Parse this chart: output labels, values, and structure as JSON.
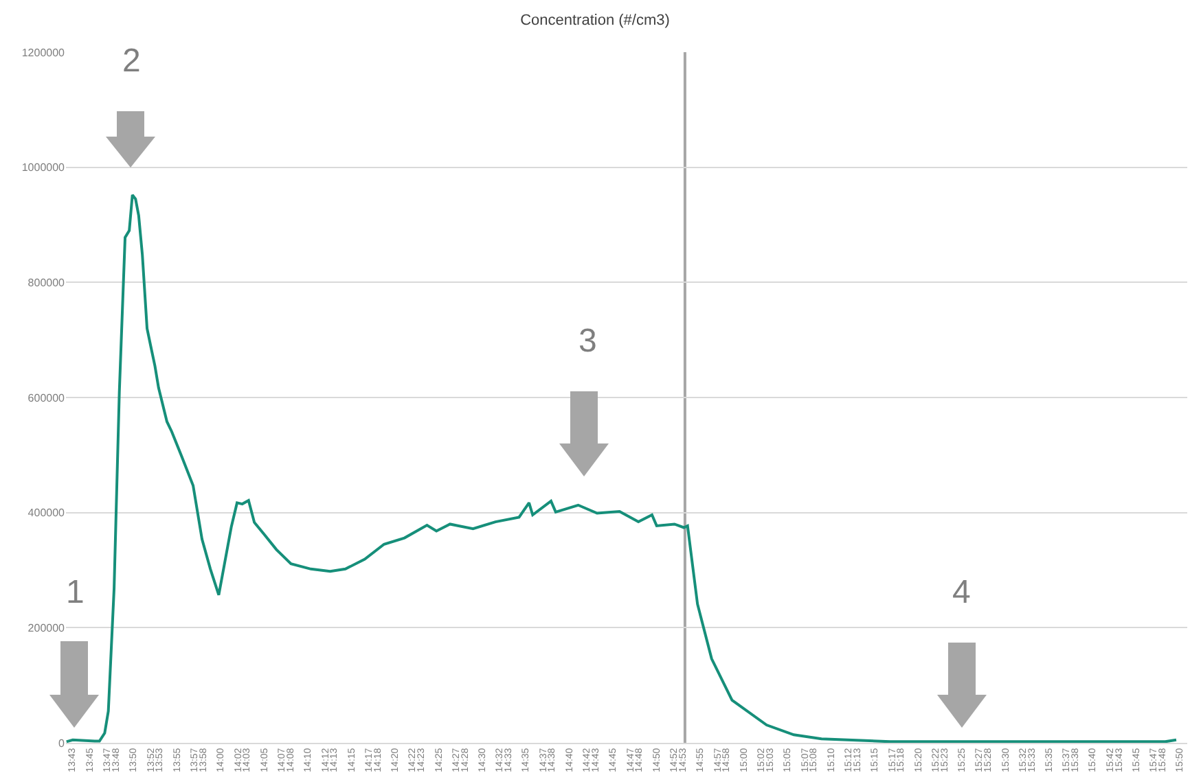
{
  "chart_data": {
    "type": "line",
    "title": "Concentration (#/cm3)",
    "x": [
      13.706,
      13.718,
      13.76,
      13.769,
      13.779,
      13.786,
      13.797,
      13.807,
      13.818,
      13.826,
      13.832,
      13.838,
      13.844,
      13.851,
      13.86,
      13.868,
      13.875,
      13.882,
      13.898,
      13.907,
      13.926,
      13.948,
      13.965,
      13.981,
      13.997,
      14.008,
      14.021,
      14.032,
      14.042,
      14.054,
      14.065,
      14.084,
      14.107,
      14.135,
      14.173,
      14.21,
      14.239,
      14.276,
      14.313,
      14.352,
      14.395,
      14.413,
      14.439,
      14.483,
      14.526,
      14.571,
      14.59,
      14.597,
      14.632,
      14.641,
      14.684,
      14.72,
      14.763,
      14.799,
      14.825,
      14.834,
      14.868,
      14.886,
      14.893,
      14.912,
      14.939,
      14.978,
      15.044,
      15.096,
      15.149,
      15.28,
      15.806,
      15.827
    ],
    "series": [
      {
        "color": "#168f7a",
        "values": [
          2000,
          5000,
          3000,
          3000,
          17000,
          55000,
          268000,
          609000,
          878000,
          890000,
          952000,
          945000,
          916000,
          848000,
          720000,
          685000,
          655000,
          617000,
          558000,
          541000,
          498000,
          447000,
          354000,
          302000,
          257000,
          311000,
          375000,
          417000,
          415000,
          421000,
          383000,
          362000,
          336000,
          311000,
          302000,
          298000,
          302000,
          319000,
          345000,
          356000,
          378000,
          368000,
          380000,
          372000,
          384000,
          392000,
          417000,
          396000,
          420000,
          401000,
          413000,
          399000,
          402000,
          384000,
          396000,
          377000,
          380000,
          374000,
          377000,
          241000,
          146000,
          74000,
          31000,
          14000,
          7000,
          2000,
          2000,
          5000
        ]
      }
    ],
    "xlim": [
      13.705,
      15.848
    ],
    "xticks": [
      {
        "value": 13.7167,
        "label": "13:43"
      },
      {
        "value": 13.75,
        "label": "13:45"
      },
      {
        "value": 13.7833,
        "label": "13:47"
      },
      {
        "value": 13.8,
        "label": "13:48"
      },
      {
        "value": 13.8333,
        "label": "13:50"
      },
      {
        "value": 13.8667,
        "label": "13:52"
      },
      {
        "value": 13.8833,
        "label": "13:53"
      },
      {
        "value": 13.9167,
        "label": "13:55"
      },
      {
        "value": 13.95,
        "label": "13:57"
      },
      {
        "value": 13.9667,
        "label": "13:58"
      },
      {
        "value": 14.0,
        "label": "14:00"
      },
      {
        "value": 14.0333,
        "label": "14:02"
      },
      {
        "value": 14.05,
        "label": "14:03"
      },
      {
        "value": 14.0833,
        "label": "14:05"
      },
      {
        "value": 14.1167,
        "label": "14:07"
      },
      {
        "value": 14.1333,
        "label": "14:08"
      },
      {
        "value": 14.1667,
        "label": "14:10"
      },
      {
        "value": 14.2,
        "label": "14:12"
      },
      {
        "value": 14.2167,
        "label": "14:13"
      },
      {
        "value": 14.25,
        "label": "14:15"
      },
      {
        "value": 14.2833,
        "label": "14:17"
      },
      {
        "value": 14.3,
        "label": "14:18"
      },
      {
        "value": 14.3333,
        "label": "14:20"
      },
      {
        "value": 14.3667,
        "label": "14:22"
      },
      {
        "value": 14.3833,
        "label": "14:23"
      },
      {
        "value": 14.4167,
        "label": "14:25"
      },
      {
        "value": 14.45,
        "label": "14:27"
      },
      {
        "value": 14.4667,
        "label": "14:28"
      },
      {
        "value": 14.5,
        "label": "14:30"
      },
      {
        "value": 14.5333,
        "label": "14:32"
      },
      {
        "value": 14.55,
        "label": "14:33"
      },
      {
        "value": 14.5833,
        "label": "14:35"
      },
      {
        "value": 14.6167,
        "label": "14:37"
      },
      {
        "value": 14.6333,
        "label": "14:38"
      },
      {
        "value": 14.6667,
        "label": "14:40"
      },
      {
        "value": 14.7,
        "label": "14:42"
      },
      {
        "value": 14.7167,
        "label": "14:43"
      },
      {
        "value": 14.75,
        "label": "14:45"
      },
      {
        "value": 14.7833,
        "label": "14:47"
      },
      {
        "value": 14.8,
        "label": "14:48"
      },
      {
        "value": 14.8333,
        "label": "14:50"
      },
      {
        "value": 14.8667,
        "label": "14:52"
      },
      {
        "value": 14.8833,
        "label": "14:53"
      },
      {
        "value": 14.9167,
        "label": "14:55"
      },
      {
        "value": 14.95,
        "label": "14:57"
      },
      {
        "value": 14.9667,
        "label": "14:58"
      },
      {
        "value": 15.0,
        "label": "15:00"
      },
      {
        "value": 15.0333,
        "label": "15:02"
      },
      {
        "value": 15.05,
        "label": "15:03"
      },
      {
        "value": 15.0833,
        "label": "15:05"
      },
      {
        "value": 15.1167,
        "label": "15:07"
      },
      {
        "value": 15.1333,
        "label": "15:08"
      },
      {
        "value": 15.1667,
        "label": "15:10"
      },
      {
        "value": 15.2,
        "label": "15:12"
      },
      {
        "value": 15.2167,
        "label": "15:13"
      },
      {
        "value": 15.25,
        "label": "15:15"
      },
      {
        "value": 15.2833,
        "label": "15:17"
      },
      {
        "value": 15.3,
        "label": "15:18"
      },
      {
        "value": 15.3333,
        "label": "15:20"
      },
      {
        "value": 15.3667,
        "label": "15:22"
      },
      {
        "value": 15.3833,
        "label": "15:23"
      },
      {
        "value": 15.4167,
        "label": "15:25"
      },
      {
        "value": 15.45,
        "label": "15:27"
      },
      {
        "value": 15.4667,
        "label": "15:28"
      },
      {
        "value": 15.5,
        "label": "15:30"
      },
      {
        "value": 15.5333,
        "label": "15:32"
      },
      {
        "value": 15.55,
        "label": "15:33"
      },
      {
        "value": 15.5833,
        "label": "15:35"
      },
      {
        "value": 15.6167,
        "label": "15:37"
      },
      {
        "value": 15.6333,
        "label": "15:38"
      },
      {
        "value": 15.6667,
        "label": "15:40"
      },
      {
        "value": 15.7,
        "label": "15:42"
      },
      {
        "value": 15.7167,
        "label": "15:43"
      },
      {
        "value": 15.75,
        "label": "15:45"
      },
      {
        "value": 15.7833,
        "label": "15:47"
      },
      {
        "value": 15.8,
        "label": "15:48"
      },
      {
        "value": 15.8333,
        "label": "15:50"
      }
    ],
    "ylim": [
      0,
      1200000
    ],
    "yticks": [
      0,
      200000,
      400000,
      600000,
      800000,
      1000000,
      1200000
    ],
    "grid": "y",
    "marker": "none",
    "line_style": "solid",
    "ref_lines": [
      {
        "axis": "x",
        "value": 14.888,
        "color": "#a6a6a6"
      }
    ],
    "annotations": [
      "1",
      "2",
      "3",
      "4"
    ]
  }
}
